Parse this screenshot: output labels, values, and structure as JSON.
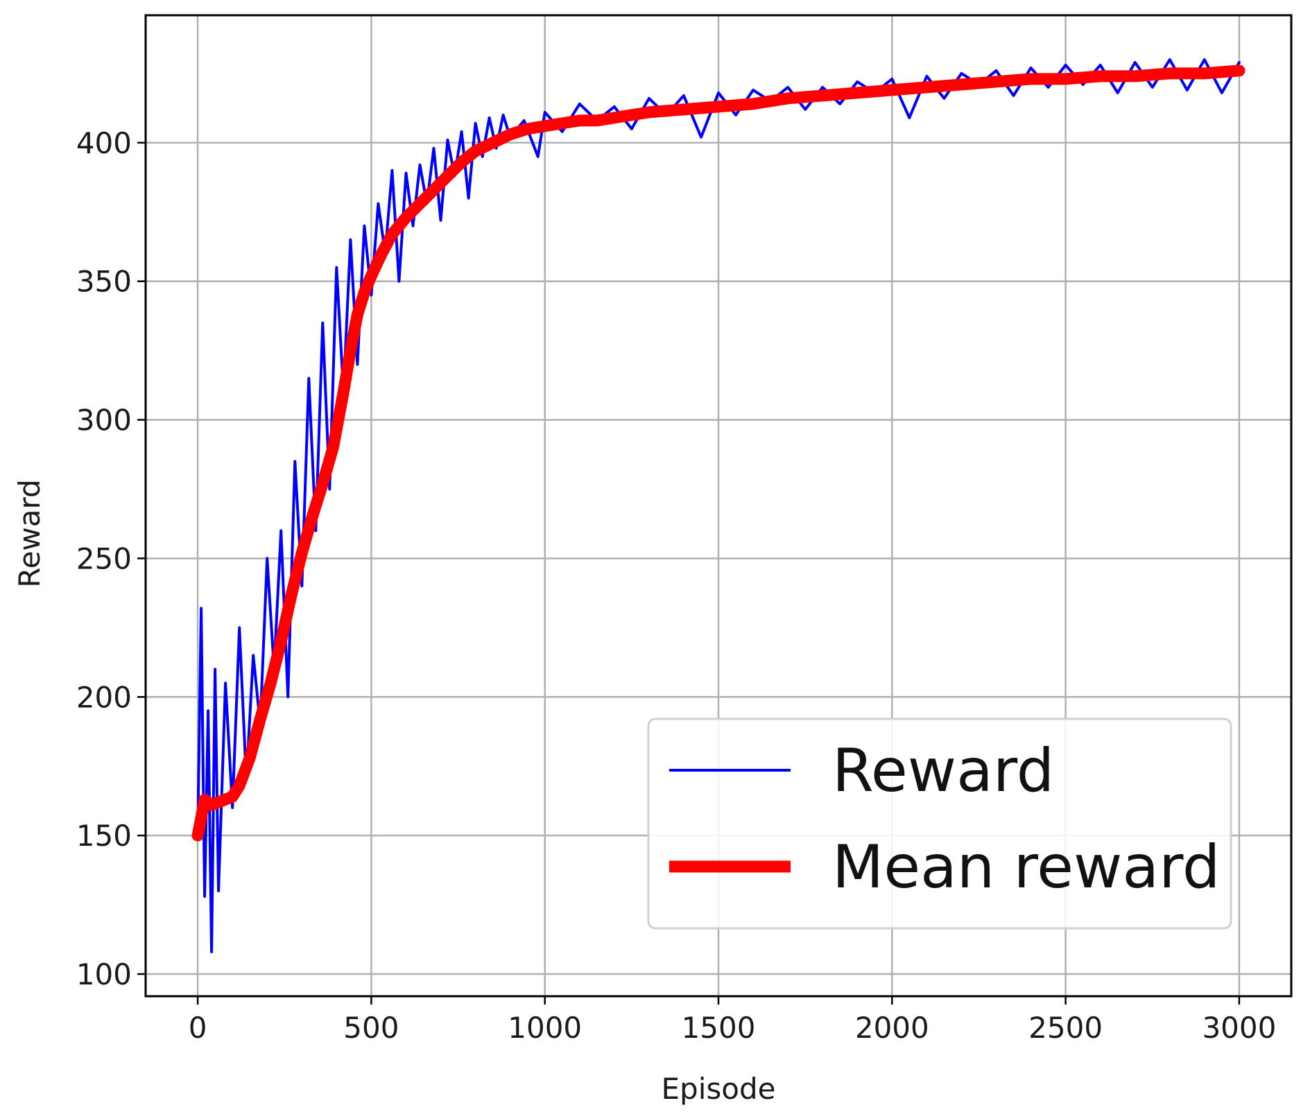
{
  "chart_data": {
    "type": "line",
    "title": "",
    "xlabel": "Episode",
    "ylabel": "Reward",
    "xlim": [
      -150,
      3150
    ],
    "ylim": [
      92,
      446
    ],
    "x_ticks": [
      0,
      500,
      1000,
      1500,
      2000,
      2500,
      3000
    ],
    "x_tick_labels": [
      "0",
      "500",
      "1000",
      "1500",
      "2000",
      "2500",
      "3000"
    ],
    "y_ticks": [
      100,
      150,
      200,
      250,
      300,
      350,
      400
    ],
    "y_tick_labels": [
      "100",
      "150",
      "200",
      "250",
      "300",
      "350",
      "400"
    ],
    "grid": true,
    "legend_position": "bottom-right",
    "series": [
      {
        "name": "Reward",
        "color": "#0000ff",
        "line_width": "thin",
        "x": [
          0,
          10,
          20,
          30,
          40,
          50,
          60,
          80,
          100,
          120,
          140,
          160,
          180,
          200,
          220,
          240,
          260,
          280,
          300,
          320,
          340,
          360,
          380,
          400,
          420,
          440,
          460,
          480,
          500,
          520,
          540,
          560,
          580,
          600,
          620,
          640,
          660,
          680,
          700,
          720,
          740,
          760,
          780,
          800,
          820,
          840,
          860,
          880,
          900,
          940,
          980,
          1000,
          1050,
          1100,
          1150,
          1200,
          1250,
          1300,
          1350,
          1400,
          1450,
          1500,
          1550,
          1600,
          1650,
          1700,
          1750,
          1800,
          1850,
          1900,
          1950,
          2000,
          2050,
          2100,
          2150,
          2200,
          2250,
          2300,
          2350,
          2400,
          2450,
          2500,
          2550,
          2600,
          2650,
          2700,
          2750,
          2800,
          2850,
          2900,
          2950,
          3000
        ],
        "values": [
          150,
          232,
          128,
          195,
          108,
          210,
          130,
          205,
          160,
          225,
          170,
          215,
          190,
          250,
          210,
          260,
          200,
          285,
          240,
          315,
          260,
          335,
          275,
          355,
          310,
          365,
          320,
          370,
          345,
          378,
          360,
          390,
          350,
          389,
          370,
          392,
          378,
          398,
          372,
          401,
          388,
          404,
          380,
          407,
          395,
          409,
          398,
          410,
          402,
          408,
          395,
          411,
          404,
          414,
          408,
          413,
          405,
          416,
          410,
          417,
          402,
          418,
          410,
          419,
          415,
          420,
          412,
          420,
          414,
          422,
          418,
          423,
          409,
          424,
          416,
          425,
          421,
          426,
          417,
          427,
          420,
          428,
          421,
          428,
          418,
          429,
          420,
          430,
          419,
          430,
          418,
          429
        ]
      },
      {
        "name": "Mean reward",
        "color": "#ff0000",
        "line_width": "thick",
        "x": [
          0,
          20,
          40,
          60,
          80,
          100,
          120,
          150,
          180,
          210,
          240,
          270,
          300,
          330,
          360,
          390,
          420,
          440,
          460,
          480,
          500,
          530,
          560,
          600,
          640,
          680,
          720,
          760,
          800,
          850,
          900,
          950,
          1000,
          1050,
          1100,
          1150,
          1200,
          1250,
          1300,
          1400,
          1500,
          1600,
          1700,
          1800,
          1900,
          2000,
          2100,
          2200,
          2300,
          2400,
          2500,
          2600,
          2700,
          2800,
          2900,
          3000
        ],
        "values": [
          150,
          163,
          161,
          162,
          163,
          164,
          168,
          178,
          192,
          205,
          220,
          237,
          252,
          265,
          277,
          290,
          310,
          325,
          338,
          346,
          352,
          360,
          367,
          373,
          378,
          383,
          388,
          393,
          397,
          400,
          403,
          405,
          406,
          407,
          408,
          408,
          409,
          410,
          411,
          412,
          413,
          414,
          416,
          417,
          418,
          419,
          420,
          421,
          422,
          423,
          423,
          424,
          424,
          425,
          425,
          426
        ]
      }
    ]
  }
}
